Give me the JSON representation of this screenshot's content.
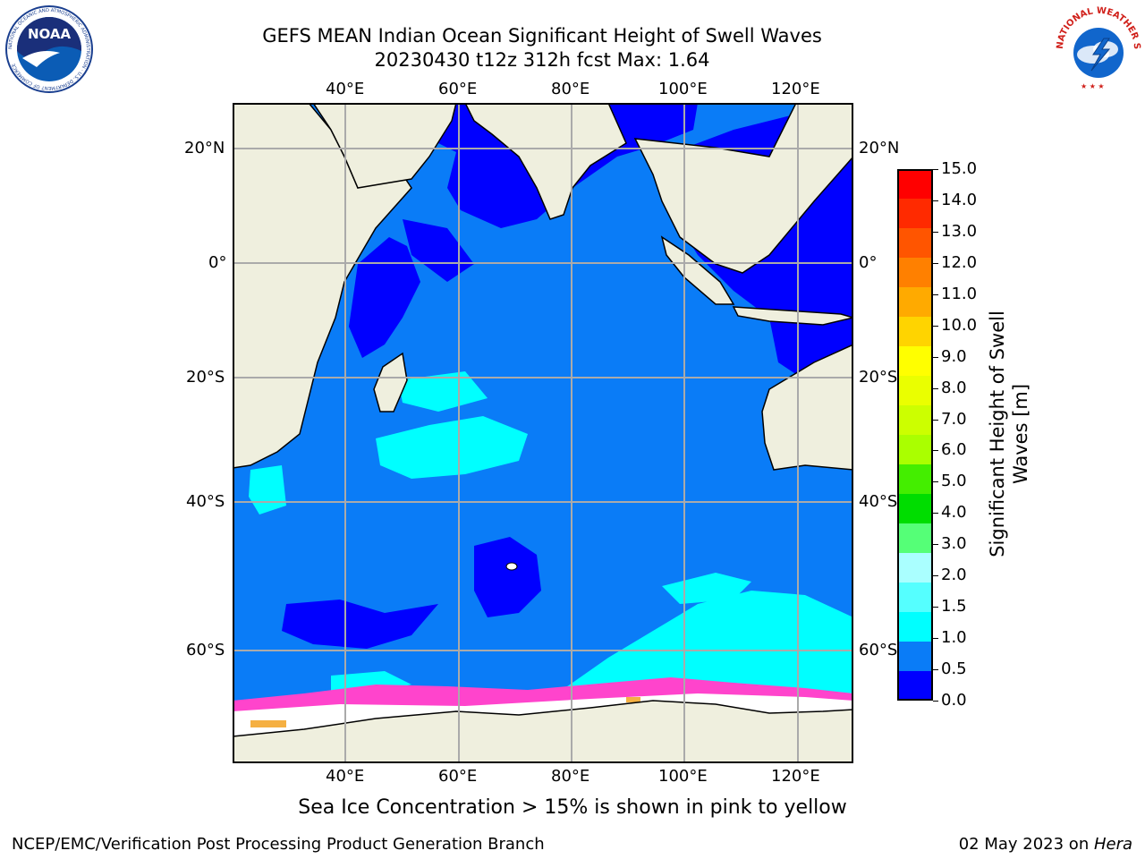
{
  "title": {
    "line1": "GEFS MEAN Indian Ocean Significant Height of Swell Waves",
    "line2": "20230430 t12z 312h fcst   Max: 1.64"
  },
  "map": {
    "top_lon_labels": [
      "40°E",
      "60°E",
      "80°E",
      "100°E",
      "120°E"
    ],
    "bottom_lon_labels": [
      "40°E",
      "60°E",
      "80°E",
      "100°E",
      "120°E"
    ],
    "left_lat_labels": [
      "20°N",
      "0°",
      "20°S",
      "40°S",
      "60°S"
    ],
    "right_lat_labels": [
      "20°N",
      "0°",
      "20°S",
      "40°S",
      "60°S"
    ],
    "colors": {
      "land": "#efefde",
      "sea_ice": "#ffffff",
      "ocean_0_0_5": "#0000ff",
      "ocean_0_5_1_0": "#0a7cf7",
      "ocean_1_0_1_5": "#00ffff",
      "ice_edge": "#ff44cc",
      "ice_thick": "#f5b042"
    }
  },
  "colorbar": {
    "label_line1": "Significant Height of Swell",
    "label_line2": "Waves [m]",
    "ticks": [
      "15.0",
      "14.0",
      "13.0",
      "12.0",
      "11.0",
      "10.0",
      "9.0",
      "8.0",
      "7.0",
      "6.0",
      "5.0",
      "4.0",
      "3.0",
      "2.0",
      "1.5",
      "1.0",
      "0.5",
      "0.0"
    ],
    "bands": [
      "#ff0000",
      "#ff2a00",
      "#ff5500",
      "#ff8000",
      "#ffaa00",
      "#ffd400",
      "#ffff00",
      "#eaff00",
      "#ccff00",
      "#aaff00",
      "#44ee00",
      "#00dd00",
      "#55ff77",
      "#aaffff",
      "#55ffff",
      "#00ffff",
      "#0a7cf7",
      "#0000ff"
    ]
  },
  "caption": "Sea Ice Concentration > 15% is shown in pink to yellow",
  "footer": {
    "left": "NCEP/EMC/Verification Post Processing Product Generation Branch",
    "right_date": "02 May 2023 on ",
    "right_host": "Hera"
  },
  "logos": {
    "noaa": "NOAA",
    "noaa_ring": "NATIONAL OCEANIC AND ATMOSPHERIC ADMINISTRATION · U.S. DEPARTMENT OF COMMERCE",
    "nws_ring": "NATIONAL WEATHER SERVICE"
  }
}
